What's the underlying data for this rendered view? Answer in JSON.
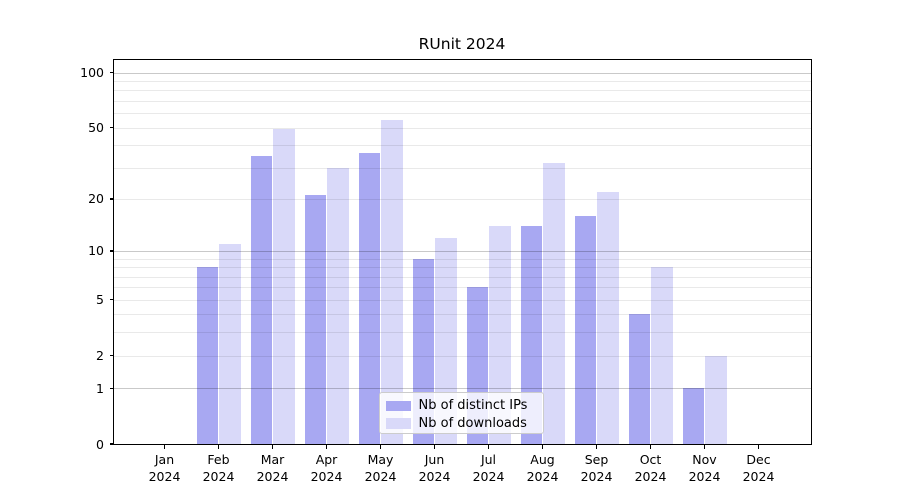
{
  "chart_data": {
    "type": "bar",
    "title": "RUnit 2024",
    "year": "2024",
    "months": [
      "Jan",
      "Feb",
      "Mar",
      "Apr",
      "May",
      "Jun",
      "Jul",
      "Aug",
      "Sep",
      "Oct",
      "Nov",
      "Dec"
    ],
    "categories": [
      "Jan 2024",
      "Feb 2024",
      "Mar 2024",
      "Apr 2024",
      "May 2024",
      "Jun 2024",
      "Jul 2024",
      "Aug 2024",
      "Sep 2024",
      "Oct 2024",
      "Nov 2024",
      "Dec 2024"
    ],
    "series": [
      {
        "name": "Nb of distinct IPs",
        "color": "#a8a8f2",
        "values": [
          0,
          8,
          35,
          21,
          36,
          9,
          6,
          14,
          16,
          4,
          1,
          0
        ]
      },
      {
        "name": "Nb of downloads",
        "color": "#d9d9f9",
        "values": [
          0,
          11,
          49,
          30,
          55,
          12,
          14,
          32,
          22,
          8,
          2,
          0
        ]
      }
    ],
    "yscale": "log1p",
    "ylim": [
      0,
      117
    ],
    "y_ticks": [
      0,
      1,
      2,
      5,
      10,
      20,
      50,
      100
    ],
    "y_major_grid": [
      1,
      10,
      100
    ],
    "y_minor_grid": [
      2,
      3,
      4,
      5,
      6,
      7,
      8,
      9,
      20,
      30,
      40,
      50,
      60,
      70,
      80,
      90
    ],
    "grid": true,
    "legend_position": "lower center",
    "axis_color": "#000000",
    "background_color": "#ffffff"
  }
}
